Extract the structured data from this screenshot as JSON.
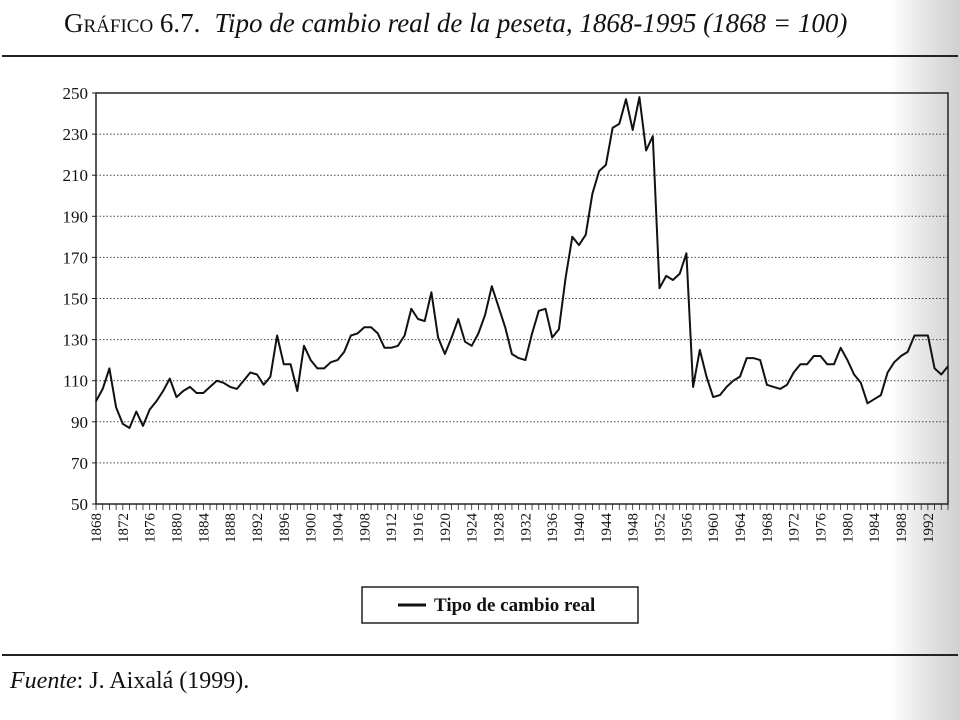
{
  "title": {
    "label": "Gráfico 6.7.",
    "text": "Tipo de cambio real de la peseta, 1868-1995 (1868 = 100)"
  },
  "source": {
    "label": "Fuente",
    "text": ": J. Aixalá (1999)."
  },
  "chart_data": {
    "type": "line",
    "title": "Tipo de cambio real de la peseta, 1868-1995 (1868 = 100)",
    "xlabel": "",
    "ylabel": "",
    "xlim": [
      1868,
      1995
    ],
    "ylim": [
      50,
      250
    ],
    "yticks": [
      50,
      70,
      90,
      110,
      130,
      150,
      170,
      190,
      210,
      230,
      250
    ],
    "xticks": [
      1868,
      1872,
      1876,
      1880,
      1884,
      1888,
      1892,
      1896,
      1900,
      1904,
      1908,
      1912,
      1916,
      1920,
      1924,
      1928,
      1932,
      1936,
      1940,
      1944,
      1948,
      1952,
      1956,
      1960,
      1964,
      1968,
      1972,
      1976,
      1980,
      1984,
      1988,
      1992
    ],
    "grid": "horizontal dotted",
    "legend_position": "bottom-center",
    "series": [
      {
        "name": "Tipo de cambio real",
        "color": "#111111",
        "x": [
          1868,
          1869,
          1870,
          1871,
          1872,
          1873,
          1874,
          1875,
          1876,
          1877,
          1878,
          1879,
          1880,
          1881,
          1882,
          1883,
          1884,
          1885,
          1886,
          1887,
          1888,
          1889,
          1890,
          1891,
          1892,
          1893,
          1894,
          1895,
          1896,
          1897,
          1898,
          1899,
          1900,
          1901,
          1902,
          1903,
          1904,
          1905,
          1906,
          1907,
          1908,
          1909,
          1910,
          1911,
          1912,
          1913,
          1914,
          1915,
          1916,
          1917,
          1918,
          1919,
          1920,
          1921,
          1922,
          1923,
          1924,
          1925,
          1926,
          1927,
          1928,
          1929,
          1930,
          1931,
          1932,
          1933,
          1934,
          1935,
          1936,
          1937,
          1938,
          1939,
          1940,
          1941,
          1942,
          1943,
          1944,
          1945,
          1946,
          1947,
          1948,
          1949,
          1950,
          1951,
          1952,
          1953,
          1954,
          1955,
          1956,
          1957,
          1958,
          1959,
          1960,
          1961,
          1962,
          1963,
          1964,
          1965,
          1966,
          1967,
          1968,
          1969,
          1970,
          1971,
          1972,
          1973,
          1974,
          1975,
          1976,
          1977,
          1978,
          1979,
          1980,
          1981,
          1982,
          1983,
          1984,
          1985,
          1986,
          1987,
          1988,
          1989,
          1990,
          1991,
          1992,
          1993,
          1994,
          1995
        ],
        "values": [
          100,
          106,
          116,
          97,
          89,
          87,
          95,
          88,
          96,
          100,
          105,
          111,
          102,
          105,
          107,
          104,
          104,
          107,
          110,
          109,
          107,
          106,
          110,
          114,
          113,
          108,
          112,
          132,
          118,
          118,
          105,
          127,
          120,
          116,
          116,
          119,
          120,
          124,
          132,
          133,
          136,
          136,
          133,
          126,
          126,
          127,
          132,
          145,
          140,
          139,
          153,
          131,
          123,
          131,
          140,
          129,
          127,
          133,
          142,
          156,
          146,
          136,
          123,
          121,
          120,
          133,
          144,
          145,
          131,
          135,
          160,
          180,
          176,
          181,
          201,
          212,
          215,
          233,
          235,
          247,
          232,
          248,
          222,
          229,
          155,
          161,
          159,
          162,
          172,
          107,
          125,
          112,
          102,
          103,
          107,
          110,
          112,
          121,
          121,
          120,
          108,
          107,
          106,
          108,
          114,
          118,
          118,
          122,
          122,
          118,
          118,
          126,
          120,
          113,
          109,
          99,
          101,
          103,
          114,
          119,
          122,
          124,
          132,
          132,
          132,
          116,
          113,
          117
        ]
      }
    ]
  }
}
